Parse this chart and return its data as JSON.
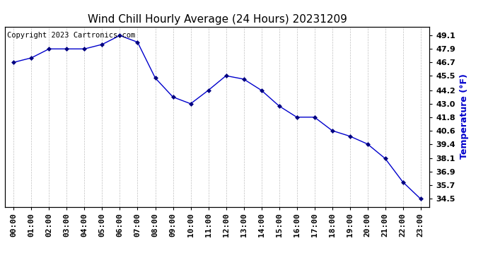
{
  "title": "Wind Chill Hourly Average (24 Hours) 20231209",
  "copyright_text": "Copyright 2023 Cartronics.com",
  "ylabel": "Temperature (°F)",
  "x_labels": [
    "00:00",
    "01:00",
    "02:00",
    "03:00",
    "04:00",
    "05:00",
    "06:00",
    "07:00",
    "08:00",
    "09:00",
    "10:00",
    "11:00",
    "12:00",
    "13:00",
    "14:00",
    "15:00",
    "16:00",
    "17:00",
    "18:00",
    "19:00",
    "20:00",
    "21:00",
    "22:00",
    "23:00"
  ],
  "y_values": [
    46.7,
    47.1,
    47.9,
    47.9,
    47.9,
    48.3,
    49.1,
    48.5,
    45.3,
    43.6,
    43.0,
    44.2,
    45.5,
    45.2,
    44.2,
    42.8,
    41.8,
    41.8,
    40.6,
    40.1,
    39.4,
    38.1,
    36.0,
    34.5
  ],
  "line_color": "#0000cc",
  "marker_color": "#000080",
  "background_color": "#ffffff",
  "plot_bg_color": "#ffffff",
  "grid_color": "#b0b0b0",
  "ytick_values": [
    34.5,
    35.7,
    36.9,
    38.1,
    39.4,
    40.6,
    41.8,
    43.0,
    44.2,
    45.5,
    46.7,
    47.9,
    49.1
  ],
  "ylim_min": 33.8,
  "ylim_max": 49.9,
  "title_fontsize": 11,
  "label_fontsize": 9,
  "tick_fontsize": 8,
  "copyright_fontsize": 7.5,
  "ylabel_color": "#0000cc",
  "copyright_color": "#000000"
}
